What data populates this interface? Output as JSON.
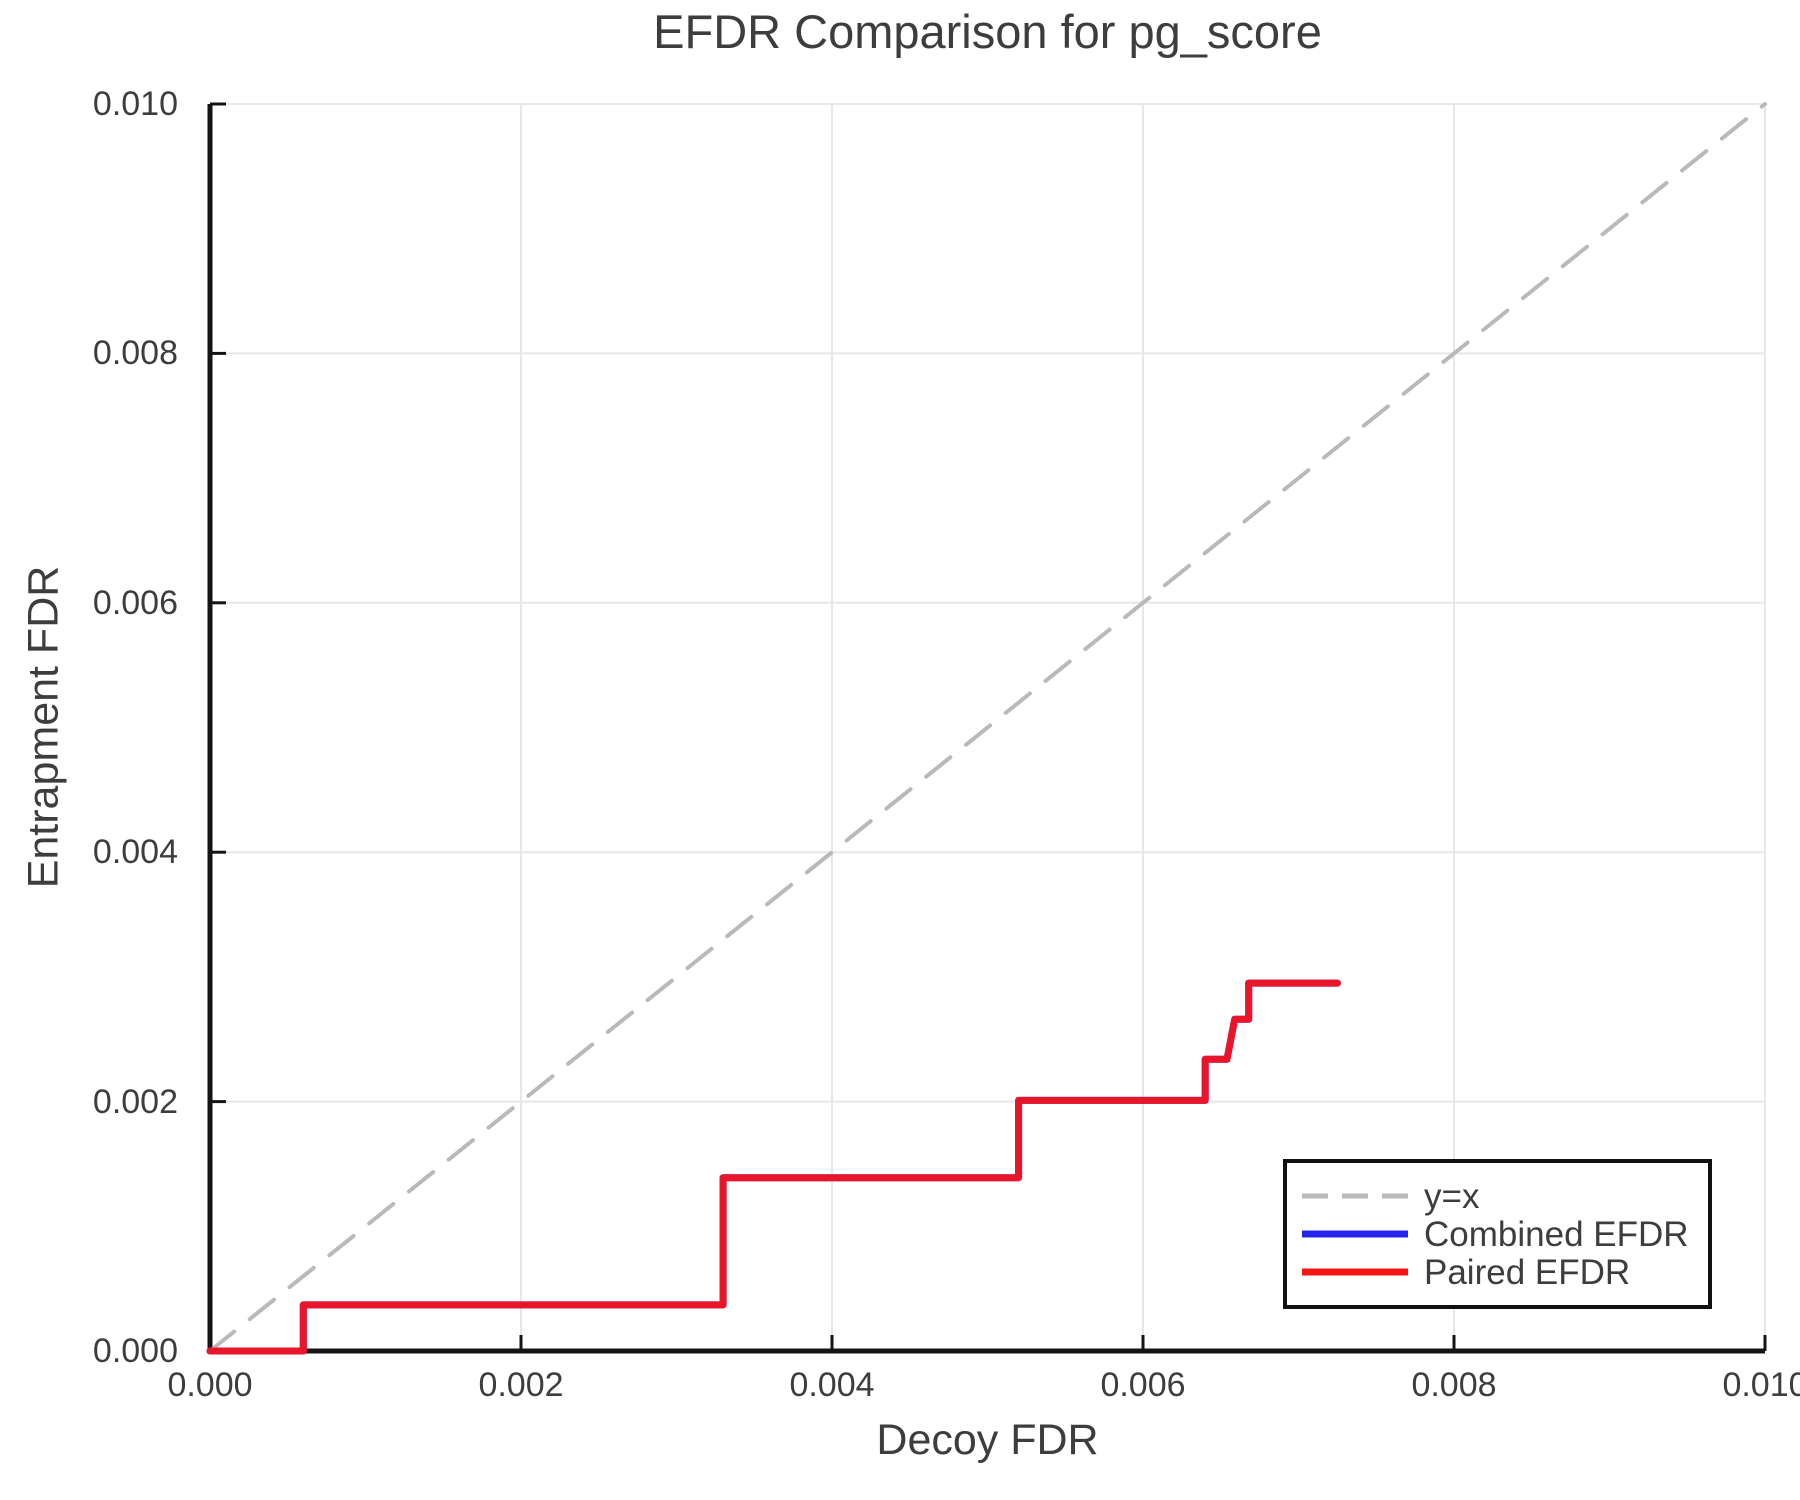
{
  "chart_data": {
    "type": "line",
    "title": "EFDR Comparison for pg_score",
    "xlabel": "Decoy FDR",
    "ylabel": "Entrapment FDR",
    "xlim": [
      0,
      0.01
    ],
    "ylim": [
      0,
      0.01
    ],
    "xtick_labels": [
      "0.000",
      "0.002",
      "0.004",
      "0.006",
      "0.008",
      "0.010"
    ],
    "ytick_labels": [
      "0.000",
      "0.002",
      "0.004",
      "0.006",
      "0.008",
      "0.010"
    ],
    "grid": true,
    "colors": {
      "grid": "#e7e7e7",
      "spine": "#141414",
      "tick": "#141414",
      "text": "#3d3d3d",
      "identity": "#b9b9b9",
      "combined": "#2424ef",
      "paired": "#ff1414",
      "legend_border": "#111111",
      "background": "#ffffff"
    },
    "legend": {
      "position": "bottom-right",
      "entries": [
        {
          "label": "y=x",
          "series": "identity",
          "dashed": true
        },
        {
          "label": "Combined EFDR",
          "series": "combined",
          "dashed": false
        },
        {
          "label": "Paired EFDR",
          "series": "paired",
          "dashed": false
        }
      ]
    },
    "series": [
      {
        "name": "y=x",
        "key": "identity",
        "style": "dashed",
        "width": 4,
        "opacity": 1,
        "points": [
          [
            0,
            0
          ],
          [
            0.01,
            0.01
          ]
        ]
      },
      {
        "name": "Combined EFDR",
        "key": "combined",
        "style": "solid",
        "width": 7,
        "opacity": 1,
        "points": [
          [
            0.0,
            0.0
          ],
          [
            0.0006,
            0.0
          ],
          [
            0.0006,
            0.00037
          ],
          [
            0.0033,
            0.00037
          ],
          [
            0.0033,
            0.00139
          ],
          [
            0.0052,
            0.00139
          ],
          [
            0.0052,
            0.00201
          ],
          [
            0.0064,
            0.00201
          ],
          [
            0.0064,
            0.00234
          ],
          [
            0.00654,
            0.00234
          ],
          [
            0.00659,
            0.00266
          ],
          [
            0.00668,
            0.00266
          ],
          [
            0.00668,
            0.00295
          ],
          [
            0.00725,
            0.00295
          ]
        ]
      },
      {
        "name": "Paired EFDR",
        "key": "paired",
        "style": "solid",
        "width": 7,
        "opacity": 0.9,
        "points": [
          [
            0.0,
            0.0
          ],
          [
            0.0006,
            0.0
          ],
          [
            0.0006,
            0.00037
          ],
          [
            0.0033,
            0.00037
          ],
          [
            0.0033,
            0.00139
          ],
          [
            0.0052,
            0.00139
          ],
          [
            0.0052,
            0.00201
          ],
          [
            0.0064,
            0.00201
          ],
          [
            0.0064,
            0.00234
          ],
          [
            0.00654,
            0.00234
          ],
          [
            0.00659,
            0.00266
          ],
          [
            0.00668,
            0.00266
          ],
          [
            0.00668,
            0.00295
          ],
          [
            0.00725,
            0.00295
          ]
        ]
      }
    ]
  }
}
